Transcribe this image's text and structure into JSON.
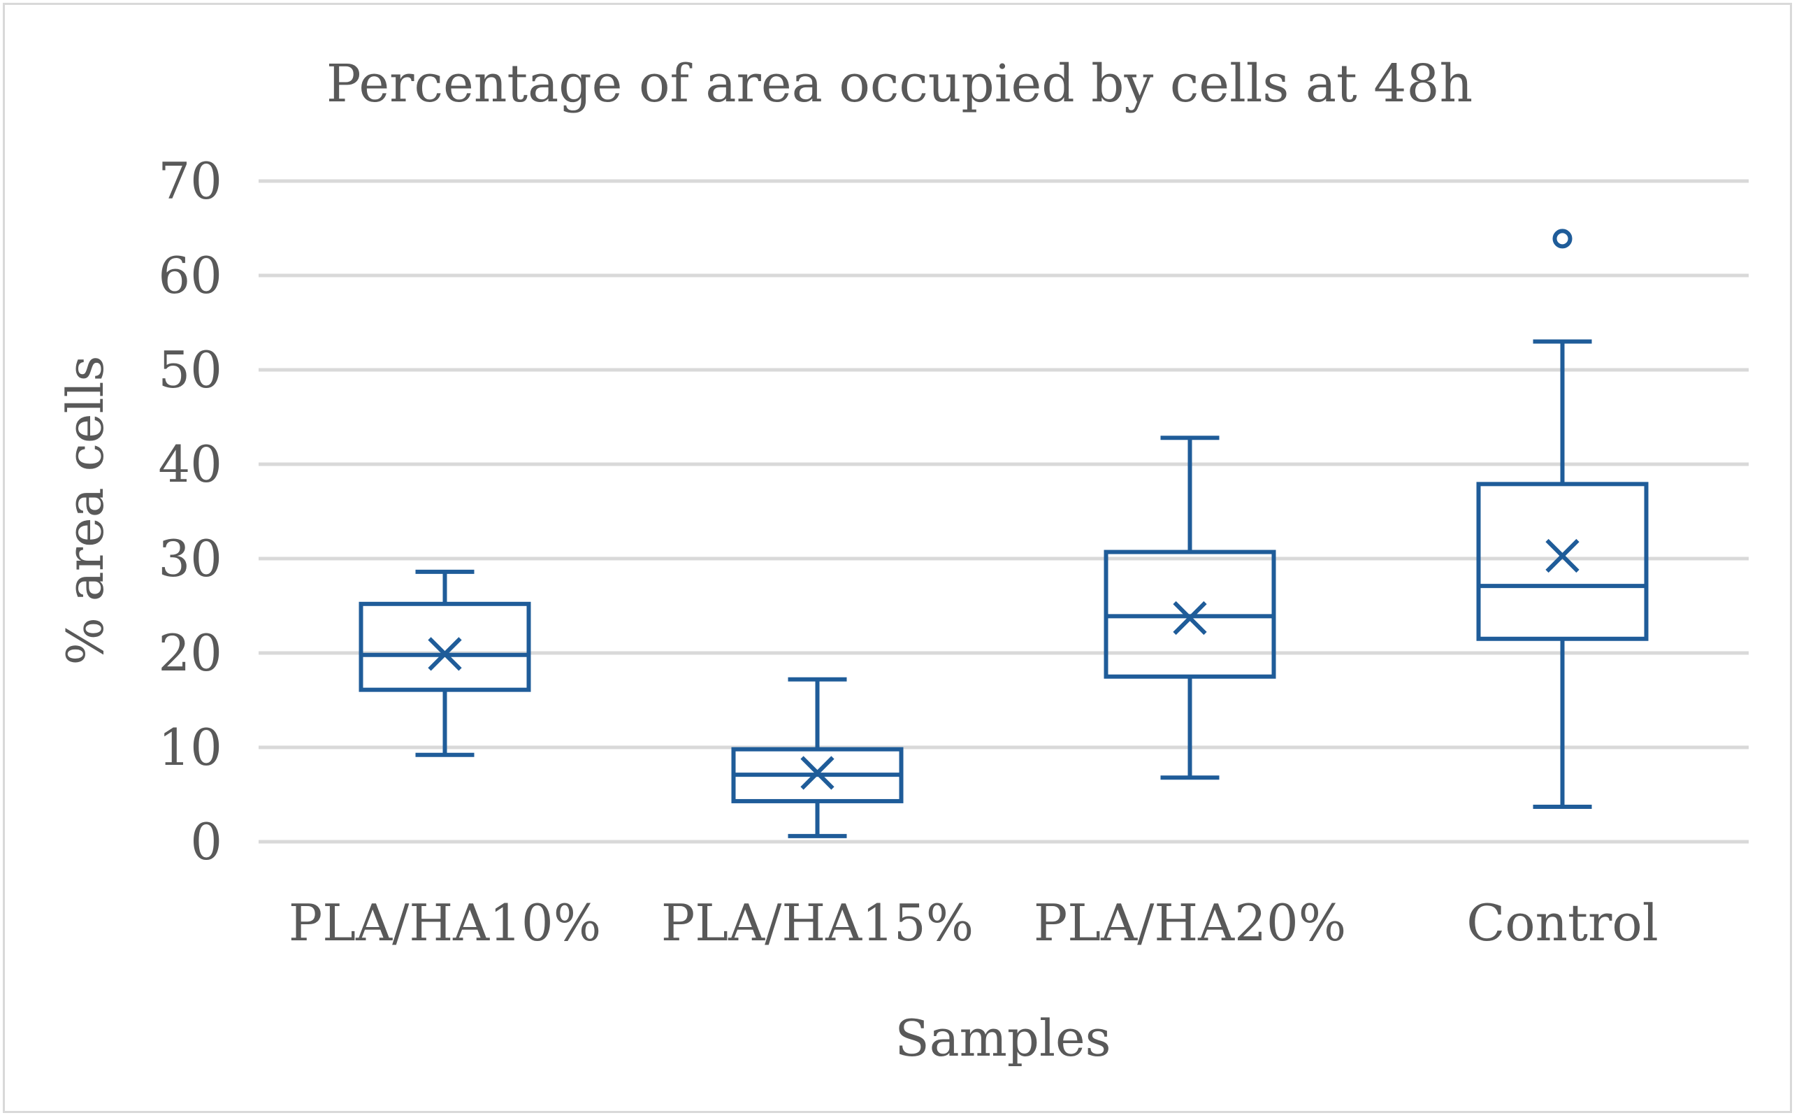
{
  "chart_data": {
    "type": "box",
    "title": "Percentage of area occupied by cells at 48h",
    "xlabel": "Samples",
    "ylabel": "% area cells",
    "ylim": [
      0,
      70
    ],
    "yticks": [
      0,
      10,
      20,
      30,
      40,
      50,
      60,
      70
    ],
    "grid": true,
    "series_color": "#1f5c99",
    "categories": [
      "PLA/HA10%",
      "PLA/HA15%",
      "PLA/HA20%",
      "Control"
    ],
    "boxes": [
      {
        "name": "PLA/HA10%",
        "min": 9.2,
        "q1": 16.1,
        "median": 19.8,
        "q3": 25.2,
        "max": 28.6,
        "mean": 19.9,
        "outliers": []
      },
      {
        "name": "PLA/HA15%",
        "min": 0.6,
        "q1": 4.3,
        "median": 7.1,
        "q3": 9.8,
        "max": 17.2,
        "mean": 7.3,
        "outliers": []
      },
      {
        "name": "PLA/HA20%",
        "min": 6.8,
        "q1": 17.5,
        "median": 23.9,
        "q3": 30.7,
        "max": 42.8,
        "mean": 23.7,
        "outliers": []
      },
      {
        "name": "Control",
        "min": 3.7,
        "q1": 21.5,
        "median": 27.1,
        "q3": 37.9,
        "max": 53.0,
        "mean": 30.3,
        "outliers": [
          63.9
        ]
      }
    ]
  }
}
